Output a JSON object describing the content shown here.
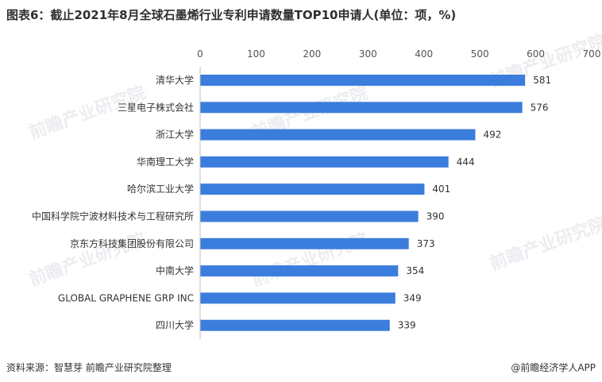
{
  "title": "图表6：截止2021年8月全球石墨烯行业专利申请数量TOP10申请人(单位：项，%)",
  "source": "资料来源：智慧芽 前瞻产业研究院整理",
  "brand": "@前瞻经济学人APP",
  "watermark": "前瞻产业研究院",
  "colors": {
    "bar": "#3b7ddd",
    "axis": "#bfbfbf"
  },
  "chart_data": {
    "type": "bar",
    "orientation": "horizontal",
    "categories": [
      "清华大学",
      "三星电子株式会社",
      "浙江大学",
      "华南理工大学",
      "哈尔滨工业大学",
      "中国科学院宁波材料技术与工程研究所",
      "京东方科技集团股份有限公司",
      "中南大学",
      "GLOBAL GRAPHENE GRP INC",
      "四川大学"
    ],
    "values": [
      581,
      576,
      492,
      444,
      401,
      390,
      373,
      354,
      349,
      339
    ],
    "xlim": [
      0,
      700
    ],
    "xticks": [
      0,
      100,
      200,
      300,
      400,
      500,
      600,
      700
    ],
    "xaxis_position": "top",
    "grid": false,
    "legend": "none"
  }
}
